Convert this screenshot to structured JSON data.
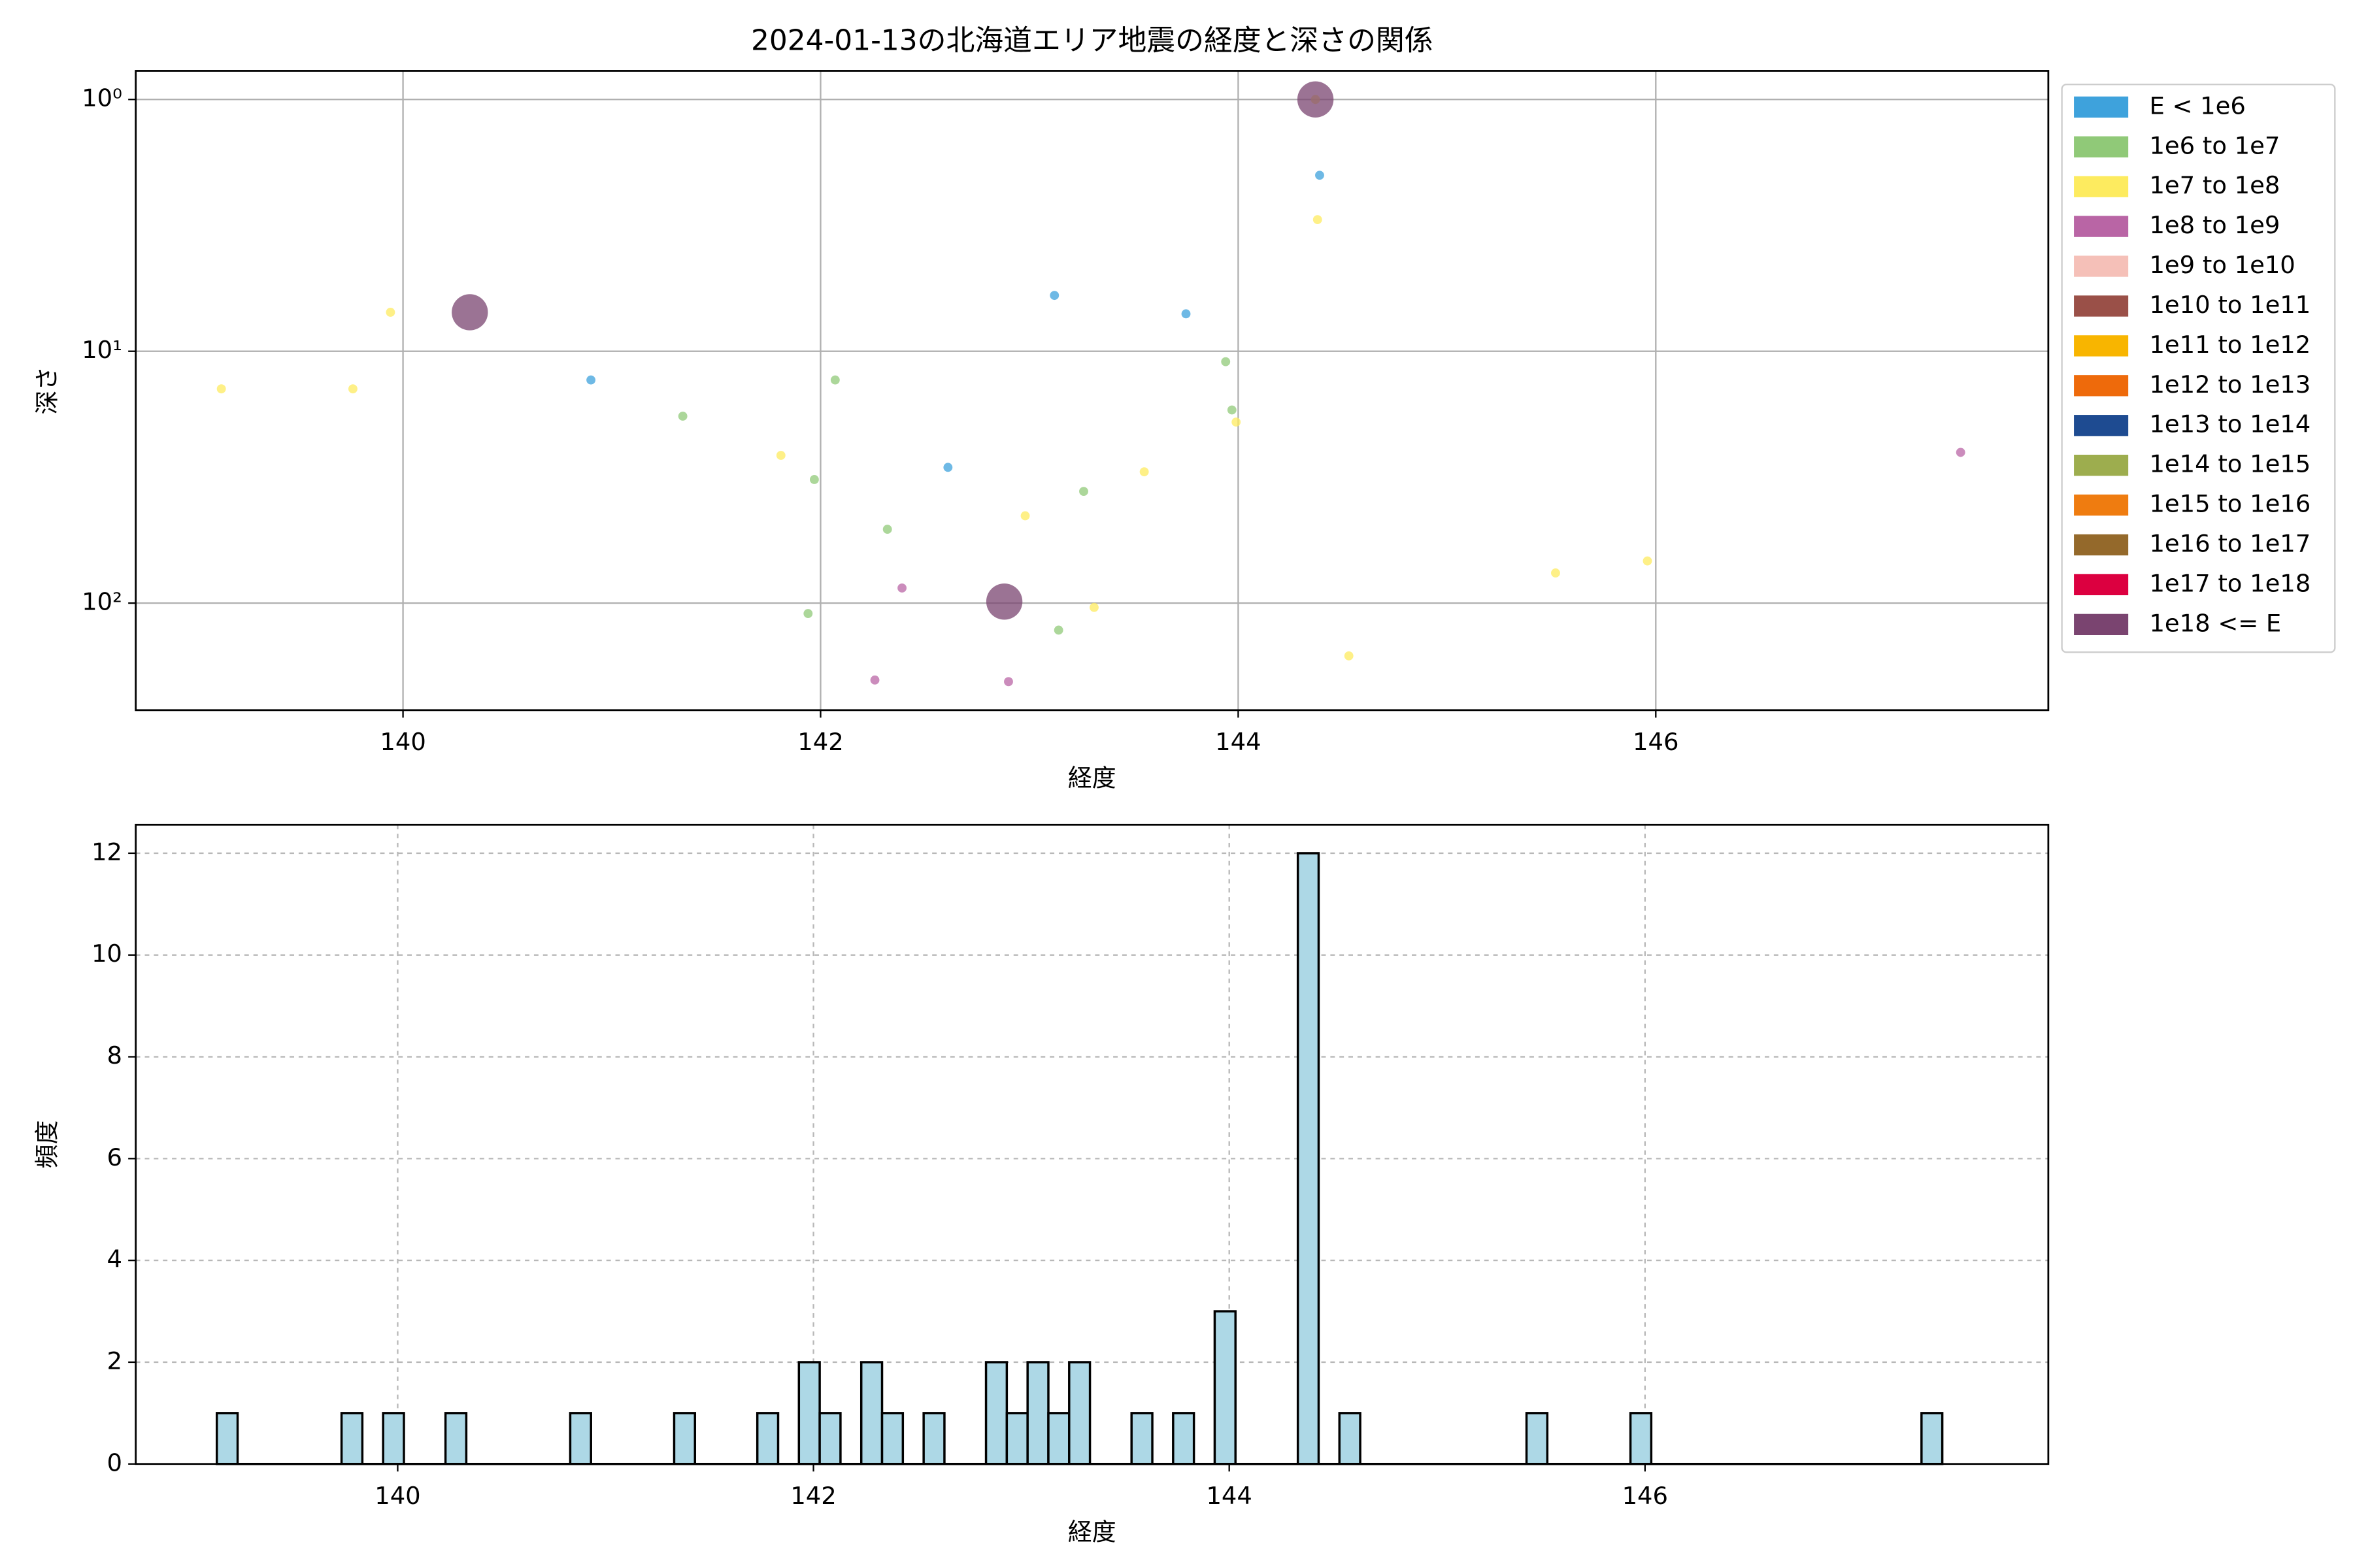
{
  "chart_data": [
    {
      "type": "scatter",
      "title": "2024-01-13の北海道エリア地震の経度と深さの関係",
      "xlabel": "経度",
      "ylabel": "深さ",
      "xlim": [
        138.72,
        147.88
      ],
      "xticks": [
        140,
        142,
        144,
        146
      ],
      "yscale": "log",
      "ylim": [
        266,
        0.77
      ],
      "yticks": [
        {
          "value": 1,
          "label": "10⁰"
        },
        {
          "value": 10,
          "label": "10¹"
        },
        {
          "value": 100,
          "label": "10²"
        }
      ],
      "grid": true,
      "legend": "outside-right",
      "series": [
        {
          "name": "E < 1e6",
          "color": "#3ea2dc",
          "x": [
            140.9,
            142.61,
            143.12,
            143.75,
            144.39
          ],
          "values": [
            13.0,
            28.9,
            6.0,
            7.1,
            2.0
          ]
        },
        {
          "name": "1e6 to 1e7",
          "color": "#90c978",
          "x": [
            141.34,
            141.97,
            142.07,
            141.94,
            142.32,
            143.14,
            143.26,
            143.94,
            143.97
          ],
          "values": [
            18.1,
            32.3,
            13.0,
            110,
            50.9,
            128,
            36,
            11.0,
            17.1
          ]
        },
        {
          "name": "1e7 to 1e8",
          "color": "#fdeb5f",
          "x": [
            139.13,
            139.76,
            139.94,
            141.81,
            142.98,
            143.31,
            143.55,
            143.99,
            144.37,
            144.38,
            144.53,
            145.52,
            145.96
          ],
          "values": [
            14.1,
            14.1,
            7.0,
            25.9,
            45,
            104,
            30.1,
            19.1,
            1.0,
            3.0,
            162,
            75.9,
            68
          ]
        },
        {
          "name": "1e8 to 1e9",
          "color": "#b965a5",
          "x": [
            142.39,
            142.26,
            142.9,
            147.46
          ],
          "values": [
            87.1,
            202,
            205,
            25.2
          ]
        },
        {
          "name": "1e9 to 1e10",
          "color": "#f5c0b8",
          "x": [],
          "values": []
        },
        {
          "name": "1e10 to 1e11",
          "color": "#9a5048",
          "x": [],
          "values": []
        },
        {
          "name": "1e11 to 1e12",
          "color": "#f8b500",
          "x": [],
          "values": []
        },
        {
          "name": "1e12 to 1e13",
          "color": "#ee6a0b",
          "x": [],
          "values": []
        },
        {
          "name": "1e13 to 1e14",
          "color": "#1e4b91",
          "x": [],
          "values": []
        },
        {
          "name": "1e14 to 1e15",
          "color": "#9dad4e",
          "x": [],
          "values": []
        },
        {
          "name": "1e15 to 1e16",
          "color": "#ef7c10",
          "x": [],
          "values": []
        },
        {
          "name": "1e16 to 1e17",
          "color": "#94692b",
          "x": [],
          "values": []
        },
        {
          "name": "1e17 to 1e18",
          "color": "#dc0040",
          "x": [],
          "values": []
        },
        {
          "name": "1e18 <= E",
          "color": "#7a4470",
          "x": [
            140.32,
            142.88,
            144.37
          ],
          "values": [
            7.0,
            98.6,
            1.0
          ]
        }
      ]
    },
    {
      "type": "histogram",
      "xlabel": "経度",
      "ylabel": "頻度",
      "xlim": [
        138.74,
        147.94
      ],
      "xticks": [
        140,
        142,
        144,
        146
      ],
      "ylim": [
        0,
        12.56
      ],
      "yticks": [
        0,
        2,
        4,
        6,
        8,
        10,
        12
      ],
      "grid": true,
      "grid_style": "dashed",
      "color": "#add8e6",
      "edgecolor": "#000000",
      "bins": [
        139.13,
        139.23,
        139.33,
        139.43,
        139.53,
        139.63,
        139.73,
        139.83,
        139.93,
        140.03,
        140.13,
        140.23,
        140.33,
        140.43,
        140.53,
        140.63,
        140.73,
        140.83,
        140.93,
        141.03,
        141.13,
        141.23,
        141.33,
        141.43,
        141.53,
        141.63,
        141.73,
        141.83,
        141.93,
        142.03,
        142.13,
        142.23,
        142.33,
        142.43,
        142.53,
        142.63,
        142.73,
        142.83,
        142.93,
        143.03,
        143.13,
        143.23,
        143.33,
        143.43,
        143.53,
        143.63,
        143.73,
        143.83,
        143.93,
        144.03,
        144.13,
        144.23,
        144.33,
        144.43,
        144.53,
        144.63,
        144.73,
        144.83,
        144.93,
        145.03,
        145.13,
        145.23,
        145.33,
        145.43,
        145.53,
        145.63,
        145.73,
        145.83,
        145.93,
        146.03,
        146.13,
        146.23,
        146.33,
        146.43,
        146.53,
        146.63,
        146.73,
        146.83,
        146.93,
        147.03,
        147.13,
        147.23,
        147.33,
        147.43
      ],
      "values": [
        1,
        0,
        0,
        0,
        0,
        0,
        1,
        0,
        1,
        0,
        0,
        1,
        0,
        0,
        0,
        0,
        0,
        1,
        0,
        0,
        0,
        0,
        1,
        0,
        0,
        0,
        1,
        0,
        2,
        1,
        0,
        2,
        1,
        0,
        1,
        0,
        0,
        2,
        1,
        2,
        1,
        2,
        0,
        0,
        1,
        0,
        1,
        0,
        3,
        0,
        0,
        0,
        12,
        0,
        1,
        0,
        0,
        0,
        0,
        0,
        0,
        0,
        0,
        1,
        0,
        0,
        0,
        0,
        1,
        0,
        0,
        0,
        0,
        0,
        0,
        0,
        0,
        0,
        0,
        0,
        0,
        0,
        1
      ]
    }
  ]
}
